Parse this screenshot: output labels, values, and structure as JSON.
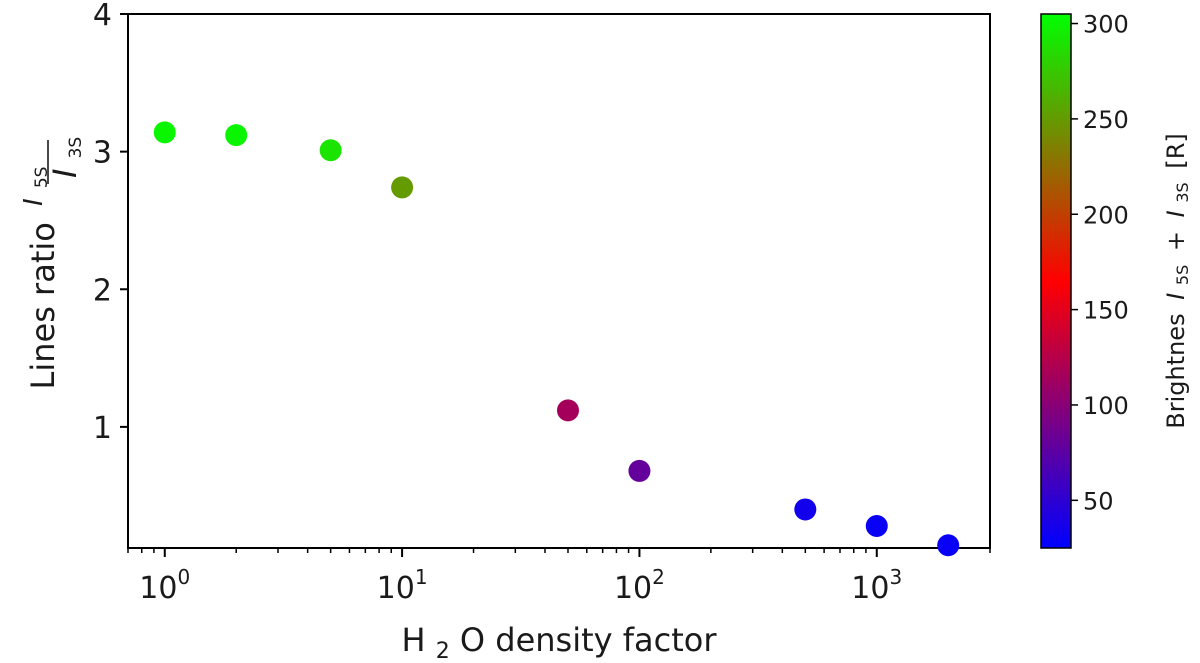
{
  "chart_data": {
    "type": "scatter",
    "title": "",
    "xlabel": {
      "prefix": "H",
      "subscript": "2",
      "suffix": "O density factor"
    },
    "ylabel": {
      "text": "Lines ratio",
      "numerator": "I",
      "numerator_sub": "5S",
      "denominator": "I",
      "denominator_sub": "3S"
    },
    "xscale": "log",
    "xlim": [
      0.7,
      3000
    ],
    "ylim": [
      0.12,
      4
    ],
    "xticks": [
      {
        "value": 1,
        "base": "10",
        "exp": "0"
      },
      {
        "value": 10,
        "base": "10",
        "exp": "1"
      },
      {
        "value": 100,
        "base": "10",
        "exp": "2"
      },
      {
        "value": 1000,
        "base": "10",
        "exp": "3"
      }
    ],
    "yticks": [
      {
        "value": 1,
        "label": "1"
      },
      {
        "value": 2,
        "label": "2"
      },
      {
        "value": 3,
        "label": "3"
      },
      {
        "value": 4,
        "label": "4"
      }
    ],
    "points": [
      {
        "x": 1,
        "y": 3.14,
        "c": 300
      },
      {
        "x": 2,
        "y": 3.12,
        "c": 300
      },
      {
        "x": 5,
        "y": 3.01,
        "c": 290
      },
      {
        "x": 10,
        "y": 2.74,
        "c": 250
      },
      {
        "x": 50,
        "y": 1.12,
        "c": 115
      },
      {
        "x": 100,
        "y": 0.68,
        "c": 80
      },
      {
        "x": 500,
        "y": 0.4,
        "c": 35
      },
      {
        "x": 1000,
        "y": 0.28,
        "c": 30
      },
      {
        "x": 2000,
        "y": 0.14,
        "c": 30
      }
    ],
    "colorbar": {
      "range": [
        25,
        305
      ],
      "colors": [
        "#0000ff",
        "#ff0000",
        "#00ff00"
      ],
      "ticks": [
        {
          "value": 50,
          "label": "50"
        },
        {
          "value": 100,
          "label": "100"
        },
        {
          "value": 150,
          "label": "150"
        },
        {
          "value": 200,
          "label": "200"
        },
        {
          "value": 250,
          "label": "250"
        },
        {
          "value": 300,
          "label": "300"
        }
      ],
      "label": {
        "text": "Brightnes",
        "term1": "I",
        "term1_sub": "5S",
        "op": "+",
        "term2": "I",
        "term2_sub": "3S",
        "unit": "[R]"
      }
    }
  }
}
